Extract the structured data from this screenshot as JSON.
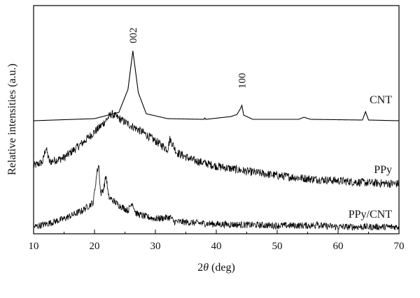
{
  "chart_data": {
    "type": "line",
    "title": "",
    "xlabel_prefix": "2",
    "xlabel_symbol": "θ",
    "xlabel_suffix": " (deg)",
    "ylabel": "Relative intensities (a.u.)",
    "xlim": [
      10,
      70
    ],
    "xticks": [
      "10",
      "20",
      "30",
      "40",
      "50",
      "60",
      "70"
    ],
    "y_ticks_shown": false,
    "grid": false,
    "legend": "none (series labeled inline at right)",
    "series": [
      {
        "name": "CNT",
        "color": "#000000",
        "noise": 0.0,
        "points": [
          [
            10,
            0.0
          ],
          [
            20,
            0.03
          ],
          [
            24,
            0.12
          ],
          [
            25.5,
            0.45
          ],
          [
            26.0,
            0.8
          ],
          [
            26.3,
            1.0
          ],
          [
            26.6,
            0.8
          ],
          [
            27.2,
            0.4
          ],
          [
            28.5,
            0.1
          ],
          [
            32,
            0.03
          ],
          [
            38,
            0.02
          ],
          [
            38.1,
            0.04
          ],
          [
            38.3,
            0.02
          ],
          [
            42.4,
            0.06
          ],
          [
            43.4,
            0.09
          ],
          [
            44.0,
            0.18
          ],
          [
            44.2,
            0.22
          ],
          [
            44.5,
            0.08
          ],
          [
            46,
            0.02
          ],
          [
            53.5,
            0.02
          ],
          [
            54.4,
            0.05
          ],
          [
            55.5,
            0.02
          ],
          [
            64.0,
            0.01
          ],
          [
            64.5,
            0.13
          ],
          [
            65.0,
            0.01
          ],
          [
            70,
            0.0
          ]
        ]
      },
      {
        "name": "PPy",
        "color": "#000000",
        "noise": 0.04,
        "points": [
          [
            10,
            0.42
          ],
          [
            11.5,
            0.46
          ],
          [
            12.0,
            0.6
          ],
          [
            12.6,
            0.46
          ],
          [
            15,
            0.5
          ],
          [
            18,
            0.64
          ],
          [
            21,
            0.8
          ],
          [
            22.8,
            0.92
          ],
          [
            25,
            0.84
          ],
          [
            28,
            0.74
          ],
          [
            30,
            0.66
          ],
          [
            32,
            0.58
          ],
          [
            32.4,
            0.68
          ],
          [
            33.5,
            0.55
          ],
          [
            36,
            0.48
          ],
          [
            40,
            0.42
          ],
          [
            45,
            0.37
          ],
          [
            50,
            0.33
          ],
          [
            55,
            0.3
          ],
          [
            60,
            0.28
          ],
          [
            65,
            0.26
          ],
          [
            70,
            0.25
          ]
        ]
      },
      {
        "name": "PPy/CNT",
        "color": "#000000",
        "noise": 0.025,
        "points": [
          [
            10,
            0.02
          ],
          [
            12,
            0.04
          ],
          [
            15,
            0.08
          ],
          [
            18,
            0.14
          ],
          [
            19.8,
            0.2
          ],
          [
            20.4,
            0.42
          ],
          [
            20.7,
            0.48
          ],
          [
            21.0,
            0.26
          ],
          [
            21.5,
            0.3
          ],
          [
            21.9,
            0.4
          ],
          [
            22.3,
            0.24
          ],
          [
            24,
            0.18
          ],
          [
            25.5,
            0.14
          ],
          [
            26.2,
            0.2
          ],
          [
            26.8,
            0.12
          ],
          [
            28,
            0.1
          ],
          [
            30,
            0.08
          ],
          [
            32.5,
            0.09
          ],
          [
            33,
            0.06
          ],
          [
            40,
            0.04
          ],
          [
            50,
            0.03
          ],
          [
            56.3,
            0.03
          ],
          [
            56.5,
            0.07
          ],
          [
            56.8,
            0.03
          ],
          [
            60,
            0.02
          ],
          [
            70,
            0.02
          ]
        ]
      }
    ],
    "annotations": [
      {
        "text": "002",
        "x": 26.3,
        "series": "CNT"
      },
      {
        "text": "100",
        "x": 44.2,
        "series": "CNT"
      }
    ]
  }
}
